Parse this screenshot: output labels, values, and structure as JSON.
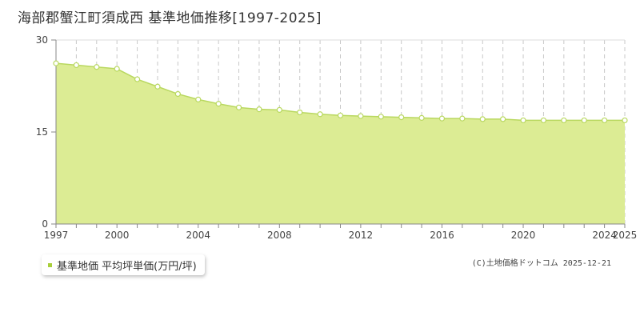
{
  "title": {
    "location": "海部郡蟹江町須成西",
    "subject": "基準地価推移[1997-2025]"
  },
  "legend": {
    "label": "基準地価 平均坪単価(万円/坪)",
    "color": "#a8cf3a"
  },
  "credit": "(C)土地価格ドットコム 2025-12-21",
  "colors": {
    "fill": "#dcec94",
    "line": "#b9d860",
    "grid": "#c8c8c8"
  },
  "chart_data": {
    "type": "area",
    "x": [
      1997,
      1998,
      1999,
      2000,
      2001,
      2002,
      2003,
      2004,
      2005,
      2006,
      2007,
      2008,
      2009,
      2010,
      2011,
      2012,
      2013,
      2014,
      2015,
      2016,
      2017,
      2018,
      2019,
      2020,
      2021,
      2022,
      2023,
      2024,
      2025
    ],
    "series": [
      {
        "values": [
          26.2,
          25.9,
          25.6,
          25.3,
          23.6,
          22.4,
          21.2,
          20.3,
          19.6,
          19.0,
          18.7,
          18.6,
          18.2,
          17.9,
          17.7,
          17.6,
          17.5,
          17.4,
          17.3,
          17.2,
          17.2,
          17.1,
          17.1,
          16.9,
          16.9,
          16.9,
          16.9,
          16.9,
          16.9
        ]
      }
    ],
    "x_tick_labels": [
      "1997",
      "2000",
      "2004",
      "2008",
      "2012",
      "2016",
      "2020",
      "2024",
      "2025"
    ],
    "y_tick_labels": [
      "0",
      "15",
      "30"
    ],
    "xlim": [
      1997,
      2025
    ],
    "ylim": [
      0,
      30
    ],
    "xlabel": "",
    "ylabel": "",
    "grid": "vertical dashed per year, horizontal dashed at 15"
  }
}
